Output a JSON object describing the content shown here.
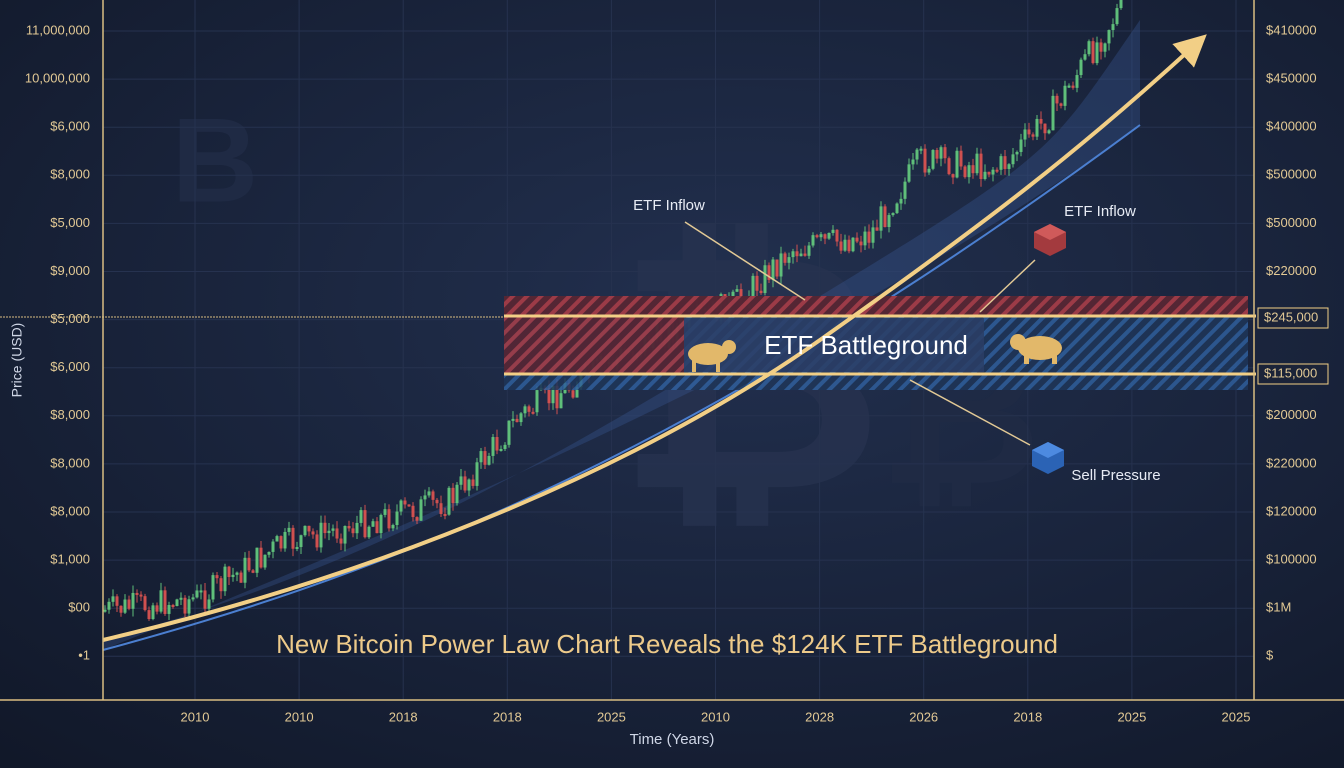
{
  "title": "New Bitcoin Power Law Chart Reveals the $124K ETF Battleground",
  "y_axis_title": "Price (USD)",
  "x_axis_title": "Time (Years)",
  "left_axis_labels": [
    "11,000,000",
    "10,000,000",
    "$6,000",
    "$8,000",
    "$5,000",
    "$9,000",
    "$5,000",
    "$6,000",
    "$8,000",
    "$8,000",
    "$8,000",
    "$1,000",
    "$00",
    "•1"
  ],
  "right_axis_labels_upper": [
    "$410000",
    "$450000",
    "$400000",
    "$500000",
    "$500000",
    "$220000"
  ],
  "highlighted_levels": [
    "$245,000",
    "$115,000"
  ],
  "right_axis_labels_lower": [
    "$200000",
    "$220000",
    "$120000",
    "$100000",
    "$1M",
    "$"
  ],
  "x_axis_labels": [
    "2010",
    "2010",
    "2018",
    "2018",
    "2025",
    "2010",
    "2028",
    "2026",
    "2018",
    "2025",
    "2025"
  ],
  "band_label": "ETF Battleground",
  "annotations": [
    "ETF Inflow",
    "ETF Inflow",
    "Sell Pressure"
  ]
}
